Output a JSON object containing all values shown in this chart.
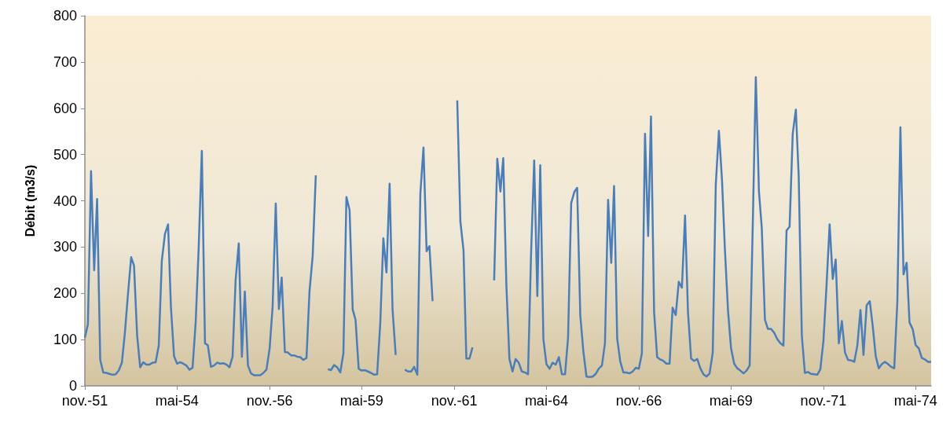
{
  "chart_data": {
    "type": "line",
    "ylabel": "Débit (m3/s)",
    "x": [
      "1951-11",
      "1951-12",
      "1952-01",
      "1952-02",
      "1952-03",
      "1952-04",
      "1952-05",
      "1952-06",
      "1952-07",
      "1952-08",
      "1952-09",
      "1952-10",
      "1952-11",
      "1952-12",
      "1953-01",
      "1953-02",
      "1953-03",
      "1953-04",
      "1953-05",
      "1953-06",
      "1953-07",
      "1953-08",
      "1953-09",
      "1953-10",
      "1953-11",
      "1953-12",
      "1954-01",
      "1954-02",
      "1954-03",
      "1954-04",
      "1954-05",
      "1954-06",
      "1954-07",
      "1954-08",
      "1954-09",
      "1954-10",
      "1954-11",
      "1954-12",
      "1955-01",
      "1955-02",
      "1955-03",
      "1955-04",
      "1955-05",
      "1955-06",
      "1955-07",
      "1955-08",
      "1955-09",
      "1955-10",
      "1955-11",
      "1955-12",
      "1956-01",
      "1956-02",
      "1956-03",
      "1956-04",
      "1956-05",
      "1956-06",
      "1956-07",
      "1956-08",
      "1956-09",
      "1956-10",
      "1956-11",
      "1956-12",
      "1957-01",
      "1957-02",
      "1957-03",
      "1957-04",
      "1957-05",
      "1957-06",
      "1957-07",
      "1957-08",
      "1957-09",
      "1957-10",
      "1957-11",
      "1957-12",
      "1958-01",
      "1958-02",
      "1958-03",
      "1958-04",
      "1958-05",
      "1958-06",
      "1958-07",
      "1958-08",
      "1958-09",
      "1958-10",
      "1958-11",
      "1958-12",
      "1959-01",
      "1959-02",
      "1959-03",
      "1959-04",
      "1959-05",
      "1959-06",
      "1959-07",
      "1959-08",
      "1959-09",
      "1959-10",
      "1959-11",
      "1959-12",
      "1960-01",
      "1960-02",
      "1960-03",
      "1960-04",
      "1960-05",
      "1960-06",
      "1960-07",
      "1960-08",
      "1960-09",
      "1960-10",
      "1960-11",
      "1960-12",
      "1961-01",
      "1961-02",
      "1961-03",
      "1961-04",
      "1961-05",
      "1961-06",
      "1961-07",
      "1961-08",
      "1961-09",
      "1961-10",
      "1961-11",
      "1961-12",
      "1962-01",
      "1962-02",
      "1962-03",
      "1962-04",
      "1962-05",
      "1962-06",
      "1962-07",
      "1962-08",
      "1962-09",
      "1962-10",
      "1962-11",
      "1962-12",
      "1963-01",
      "1963-02",
      "1963-03",
      "1963-04",
      "1963-05",
      "1963-06",
      "1963-07",
      "1963-08",
      "1963-09",
      "1963-10",
      "1963-11",
      "1963-12",
      "1964-01",
      "1964-02",
      "1964-03",
      "1964-04",
      "1964-05",
      "1964-06",
      "1964-07",
      "1964-08",
      "1964-09",
      "1964-10",
      "1964-11",
      "1964-12",
      "1965-01",
      "1965-02",
      "1965-03",
      "1965-04",
      "1965-05",
      "1965-06",
      "1965-07",
      "1965-08",
      "1965-09",
      "1965-10",
      "1965-11",
      "1965-12",
      "1966-01",
      "1966-02",
      "1966-03",
      "1966-04",
      "1966-05",
      "1966-06",
      "1966-07",
      "1966-08",
      "1966-09",
      "1966-10",
      "1966-11",
      "1966-12",
      "1967-01",
      "1967-02",
      "1967-03",
      "1967-04",
      "1967-05",
      "1967-06",
      "1967-07",
      "1967-08",
      "1967-09",
      "1967-10",
      "1967-11",
      "1967-12",
      "1968-01",
      "1968-02",
      "1968-03",
      "1968-04",
      "1968-05",
      "1968-06",
      "1968-07",
      "1968-08",
      "1968-09",
      "1968-10",
      "1968-11",
      "1968-12",
      "1969-01",
      "1969-02",
      "1969-03",
      "1969-04",
      "1969-05",
      "1969-06",
      "1969-07",
      "1969-08",
      "1969-09",
      "1969-10",
      "1969-11",
      "1969-12",
      "1970-01",
      "1970-02",
      "1970-03",
      "1970-04",
      "1970-05",
      "1970-06",
      "1970-07",
      "1970-08",
      "1970-09",
      "1970-10",
      "1970-11",
      "1970-12",
      "1971-01",
      "1971-02",
      "1971-03",
      "1971-04",
      "1971-05",
      "1971-06",
      "1971-07",
      "1971-08",
      "1971-09",
      "1971-10",
      "1971-11",
      "1971-12",
      "1972-01",
      "1972-02",
      "1972-03",
      "1972-04",
      "1972-05",
      "1972-06",
      "1972-07",
      "1972-08",
      "1972-09",
      "1972-10",
      "1972-11",
      "1972-12",
      "1973-01",
      "1973-02",
      "1973-03",
      "1973-04",
      "1973-05",
      "1973-06",
      "1973-07",
      "1973-08",
      "1973-09",
      "1973-10",
      "1973-11",
      "1973-12",
      "1974-01",
      "1974-02",
      "1974-03",
      "1974-04",
      "1974-05",
      "1974-06",
      "1974-07",
      "1974-08",
      "1974-09",
      "1974-10"
    ],
    "series": [
      {
        "color": "#4a7ebb",
        "values": [
          104,
          133,
          464,
          250,
          404,
          56,
          29,
          28,
          26,
          24,
          25,
          33,
          50,
          115,
          200,
          278,
          260,
          109,
          40,
          51,
          46,
          46,
          50,
          51,
          87,
          270,
          328,
          349,
          171,
          64,
          48,
          51,
          48,
          44,
          35,
          39,
          137,
          300,
          508,
          92,
          88,
          41,
          44,
          50,
          48,
          49,
          46,
          40,
          63,
          228,
          308,
          63,
          204,
          44,
          27,
          23,
          23,
          23,
          28,
          35,
          80,
          171,
          394,
          166,
          234,
          73,
          72,
          66,
          66,
          63,
          62,
          56,
          60,
          205,
          280,
          455,
          null,
          null,
          null,
          36,
          34,
          45,
          40,
          29,
          70,
          408,
          380,
          165,
          143,
          37,
          33,
          34,
          31,
          28,
          24,
          25,
          137,
          319,
          245,
          437,
          166,
          67,
          null,
          null,
          35,
          31,
          31,
          41,
          24,
          415,
          515,
          291,
          302,
          183,
          null,
          null,
          null,
          null,
          null,
          null,
          null,
          617,
          355,
          293,
          59,
          59,
          83,
          null,
          null,
          null,
          null,
          null,
          null,
          228,
          491,
          420,
          492,
          217,
          58,
          31,
          58,
          50,
          31,
          29,
          25,
          285,
          487,
          194,
          477,
          101,
          47,
          37,
          50,
          46,
          62,
          25,
          25,
          104,
          395,
          419,
          428,
          152,
          75,
          20,
          19,
          20,
          26,
          37,
          44,
          92,
          402,
          266,
          432,
          102,
          53,
          29,
          29,
          27,
          31,
          39,
          37,
          70,
          545,
          324,
          582,
          160,
          62,
          57,
          54,
          48,
          48,
          169,
          153,
          225,
          212,
          368,
          160,
          59,
          54,
          58,
          38,
          25,
          20,
          27,
          72,
          435,
          551,
          443,
          296,
          163,
          81,
          48,
          38,
          33,
          27,
          33,
          44,
          340,
          667,
          420,
          341,
          143,
          123,
          123,
          115,
          101,
          92,
          87,
          336,
          344,
          545,
          597,
          454,
          109,
          28,
          30,
          26,
          25,
          24,
          36,
          98,
          215,
          349,
          231,
          273,
          92,
          140,
          72,
          56,
          55,
          52,
          87,
          164,
          67,
          174,
          183,
          132,
          64,
          38,
          47,
          52,
          47,
          41,
          38,
          183,
          559,
          241,
          266,
          137,
          123,
          88,
          81,
          60,
          57,
          52,
          52
        ]
      }
    ],
    "xlim": [
      "1951-11",
      "1974-10"
    ],
    "xticks": [
      {
        "value": "1951-11",
        "label": "nov.-51"
      },
      {
        "value": "1954-05",
        "label": "mai-54"
      },
      {
        "value": "1956-11",
        "label": "nov.-56"
      },
      {
        "value": "1959-05",
        "label": "mai-59"
      },
      {
        "value": "1961-11",
        "label": "nov.-61"
      },
      {
        "value": "1964-05",
        "label": "mai-64"
      },
      {
        "value": "1966-11",
        "label": "nov.-66"
      },
      {
        "value": "1969-05",
        "label": "mai-69"
      },
      {
        "value": "1971-11",
        "label": "nov.-71"
      },
      {
        "value": "1974-05",
        "label": "mai-74"
      }
    ],
    "ylim": [
      0,
      800
    ],
    "yticks": [
      0,
      100,
      200,
      300,
      400,
      500,
      600,
      700,
      800
    ],
    "grid": false,
    "marker": "none",
    "line_style": "solid"
  }
}
